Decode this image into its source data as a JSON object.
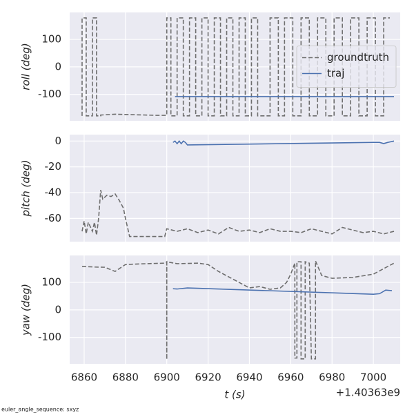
{
  "footer": "euler_angle_sequence: sxyz",
  "chart_data": [
    {
      "type": "line",
      "ylabel": "roll (deg)",
      "legend": "center right",
      "grid": true,
      "xlim": [
        6853,
        7013
      ],
      "xticks": [
        6860,
        6880,
        6900,
        6920,
        6940,
        6960,
        6980,
        7000
      ],
      "ylim": [
        -196,
        198
      ],
      "yticks": [
        -100,
        0,
        100
      ],
      "series": [
        {
          "name": "groundtruth",
          "color": "#6e6e6e",
          "dashed": true,
          "x": [
            6859,
            6859,
            6861,
            6861,
            6864,
            6864,
            6866,
            6866,
            6868,
            6868,
            6875,
            6885,
            6895,
            6900,
            6900,
            6902,
            6902,
            6905,
            6905,
            6908,
            6908,
            6911,
            6911,
            6914,
            6914,
            6917,
            6917,
            6920,
            6920,
            6923,
            6923,
            6926,
            6926,
            6929,
            6929,
            6932,
            6932,
            6935,
            6935,
            6938,
            6938,
            6941,
            6941,
            6944,
            6944,
            6950,
            6950,
            6954,
            6954,
            6957,
            6957,
            6961,
            6961,
            6965,
            6965,
            6969,
            6969,
            6973,
            6973,
            6977,
            6977,
            6981,
            6981,
            6985,
            6985,
            6989,
            6989,
            6993,
            6993,
            6997,
            6997,
            7001,
            7001,
            7005,
            7005,
            7008
          ],
          "values": [
            -178,
            178,
            178,
            -178,
            -178,
            178,
            178,
            -178,
            -178,
            -175,
            -172,
            -174,
            -176,
            -176,
            178,
            178,
            -178,
            -178,
            178,
            178,
            -178,
            -178,
            178,
            178,
            -178,
            -178,
            178,
            178,
            -178,
            -178,
            178,
            178,
            -178,
            -178,
            178,
            178,
            -178,
            -178,
            178,
            178,
            -178,
            -178,
            178,
            178,
            -178,
            -178,
            178,
            178,
            -178,
            -178,
            178,
            178,
            -178,
            -178,
            178,
            178,
            -178,
            -178,
            178,
            178,
            -178,
            -178,
            178,
            178,
            -178,
            -178,
            178,
            178,
            -178,
            -178,
            178,
            178,
            -178,
            -178,
            178,
            178
          ]
        },
        {
          "name": "traj",
          "color": "#4c72b0",
          "dashed": false,
          "x": [
            6904,
            6950,
            7010
          ],
          "values": [
            -108,
            -108,
            -108
          ]
        }
      ]
    },
    {
      "type": "line",
      "ylabel": "pitch (deg)",
      "grid": true,
      "xlim": [
        6853,
        7013
      ],
      "xticks": [
        6860,
        6880,
        6900,
        6920,
        6940,
        6960,
        6980,
        7000
      ],
      "ylim": [
        -78,
        5
      ],
      "yticks": [
        -60,
        -40,
        -20,
        0
      ],
      "series": [
        {
          "color": "#6e6e6e",
          "dashed": true,
          "x": [
            6859,
            6860,
            6861,
            6862,
            6864,
            6865,
            6866,
            6867,
            6868,
            6869,
            6871,
            6873,
            6875,
            6877,
            6879,
            6880,
            6882,
            6890,
            6899,
            6900,
            6905,
            6910,
            6915,
            6920,
            6925,
            6930,
            6935,
            6940,
            6945,
            6950,
            6955,
            6960,
            6965,
            6970,
            6975,
            6980,
            6985,
            6990,
            6995,
            7000,
            7005,
            7010
          ],
          "values": [
            -70,
            -62,
            -72,
            -63,
            -70,
            -63,
            -73,
            -60,
            -38,
            -45,
            -42,
            -43,
            -41,
            -46,
            -52,
            -60,
            -74,
            -74,
            -74,
            -68,
            -70,
            -68,
            -71,
            -69,
            -72,
            -67,
            -70,
            -69,
            -71,
            -68,
            -70,
            -70,
            -71,
            -68,
            -70,
            -72,
            -67,
            -69,
            -71,
            -70,
            -72,
            -70
          ]
        },
        {
          "color": "#4c72b0",
          "dashed": false,
          "x": [
            6903,
            6904,
            6905,
            6906,
            6907,
            6908,
            6909,
            6910,
            7000,
            7003,
            7005,
            7007,
            7010
          ],
          "values": [
            -1,
            0,
            -2,
            0,
            -2,
            0,
            -1,
            -3,
            -1,
            -1,
            -2,
            -1,
            0
          ]
        }
      ]
    },
    {
      "type": "line",
      "ylabel": "yaw (deg)",
      "xlabel": "t (s)",
      "x_offset": "+1.40363e9",
      "grid": true,
      "xlim": [
        6853,
        7013
      ],
      "xticks": [
        6860,
        6880,
        6900,
        6920,
        6940,
        6960,
        6980,
        7000
      ],
      "ylim": [
        -196,
        198
      ],
      "yticks": [
        -100,
        0,
        100
      ],
      "series": [
        {
          "color": "#6e6e6e",
          "dashed": true,
          "x": [
            6859,
            6865,
            6870,
            6875,
            6880,
            6890,
            6899,
            6900,
            6900,
            6900,
            6905,
            6915,
            6920,
            6925,
            6930,
            6935,
            6940,
            6945,
            6950,
            6955,
            6958,
            6960,
            6962,
            6962,
            6963,
            6963,
            6965,
            6965,
            6967,
            6967,
            6969,
            6970,
            6972,
            6972,
            6975,
            6980,
            6990,
            7000,
            7005,
            7010
          ],
          "values": [
            158,
            156,
            155,
            140,
            165,
            168,
            170,
            175,
            -180,
            175,
            168,
            170,
            165,
            140,
            120,
            100,
            80,
            85,
            75,
            80,
            100,
            130,
            170,
            -175,
            -175,
            175,
            175,
            -178,
            -178,
            175,
            170,
            -178,
            -178,
            178,
            125,
            115,
            118,
            130,
            150,
            170
          ]
        },
        {
          "color": "#4c72b0",
          "dashed": false,
          "x": [
            6903,
            6905,
            6910,
            7000,
            7003,
            7006,
            7009
          ],
          "values": [
            77,
            76,
            80,
            57,
            59,
            72,
            70
          ]
        }
      ]
    }
  ]
}
